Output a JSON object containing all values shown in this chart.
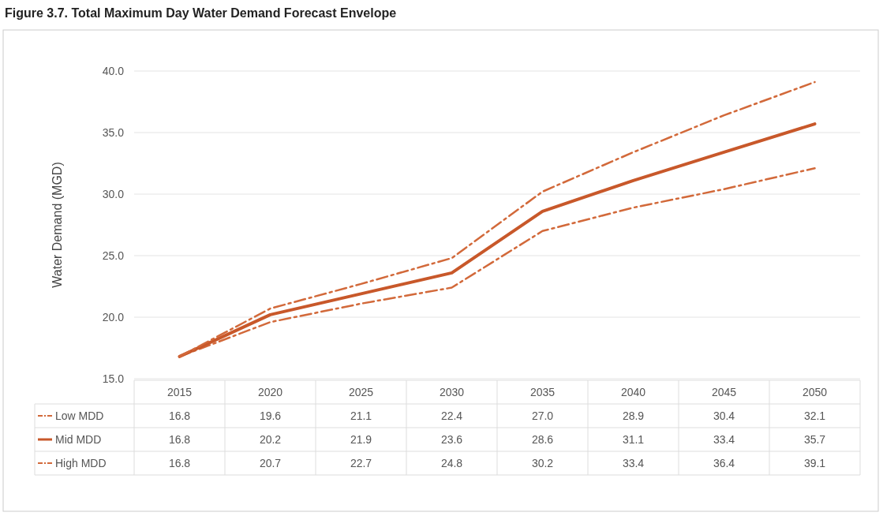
{
  "chart_data": {
    "type": "line",
    "title": "Figure 3.7. Total Maximum Day Water Demand Forecast Envelope",
    "ylabel": "Water Demand (MGD)",
    "categories": [
      "2015",
      "2020",
      "2025",
      "2030",
      "2035",
      "2040",
      "2045",
      "2050"
    ],
    "series": [
      {
        "name": "Low MDD",
        "color": "#d2693a",
        "line_style": "dashed",
        "values": [
          16.8,
          19.6,
          21.1,
          22.4,
          27.0,
          28.9,
          30.4,
          32.1
        ],
        "value_labels": [
          "16.8",
          "19.6",
          "21.1",
          "22.4",
          "27.0",
          "28.9",
          "30.4",
          "32.1"
        ]
      },
      {
        "name": "Mid MDD",
        "color": "#c8582a",
        "line_style": "solid",
        "values": [
          16.8,
          20.2,
          21.9,
          23.6,
          28.6,
          31.1,
          33.4,
          35.7
        ],
        "value_labels": [
          "16.8",
          "20.2",
          "21.9",
          "23.6",
          "28.6",
          "31.1",
          "33.4",
          "35.7"
        ]
      },
      {
        "name": "High MDD",
        "color": "#d2693a",
        "line_style": "dashed",
        "values": [
          16.8,
          20.7,
          22.7,
          24.8,
          30.2,
          33.4,
          36.4,
          39.1
        ],
        "value_labels": [
          "16.8",
          "20.7",
          "22.7",
          "24.8",
          "30.2",
          "33.4",
          "36.4",
          "39.1"
        ]
      }
    ],
    "ylim": [
      15,
      40
    ],
    "yticks": [
      {
        "value": 15,
        "label": "15.0"
      },
      {
        "value": 20,
        "label": "20.0"
      },
      {
        "value": 25,
        "label": "25.0"
      },
      {
        "value": 30,
        "label": "30.0"
      },
      {
        "value": 35,
        "label": "35.0"
      },
      {
        "value": 40,
        "label": "40.0"
      }
    ],
    "grid": "y",
    "legend": "bottom left",
    "marker": "none"
  }
}
